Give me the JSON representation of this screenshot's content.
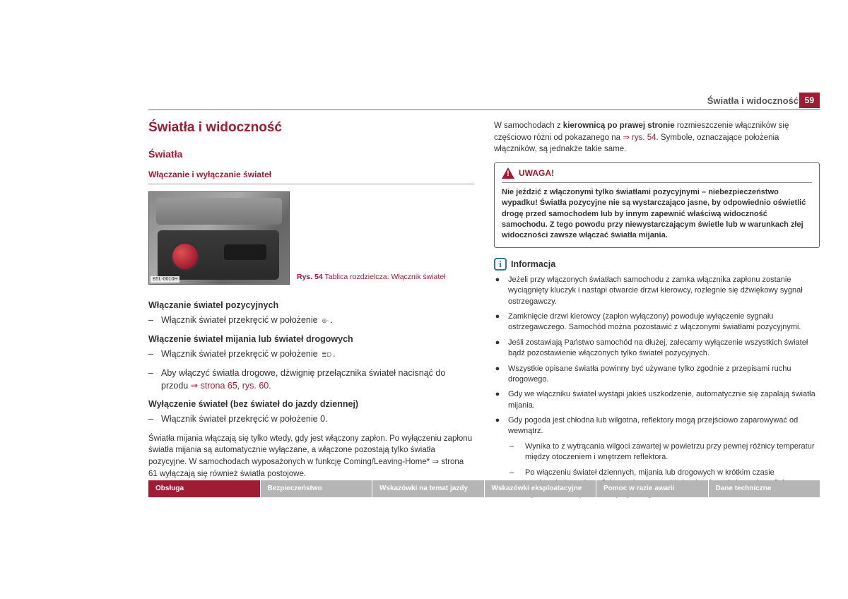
{
  "header": {
    "title": "Światła i widoczność",
    "page_number": "59"
  },
  "left": {
    "main_title": "Światła i widoczność",
    "section_title": "Światła",
    "sub_title": "Włączanie i wyłączanie świateł",
    "figure": {
      "tag": "B5L-0010H",
      "label": "Rys. 54",
      "caption": "Tablica rozdzielcza: Włącznik świateł"
    },
    "block1": {
      "head": "Włączanie świateł pozycyjnych",
      "item": "Włącznik świateł przekręcić w położenie ",
      "sym": "⊕⋅"
    },
    "block2": {
      "head": "Włączenie świateł mijania lub świateł drogowych",
      "item1": "Włącznik świateł przekręcić w położenie ",
      "sym1": "≣D",
      "item2_a": "Aby włączyć światła drogowe, dźwignię przełącznika świateł nacisnąć do przodu ",
      "item2_link": "⇒ strona 65, rys. 60",
      "item2_b": "."
    },
    "block3": {
      "head": "Wyłączenie świateł (bez świateł do jazdy dziennej)",
      "item": "Włącznik świateł przekręcić w położenie 0."
    },
    "para": "Światła mijania włączają się tylko wtedy, gdy jest włączony zapłon. Po wyłączeniu zapłonu światła mijania są automatycznie wyłączane, a włączone pozostają tylko światła pozycyjne. W samochodach wyposażonych w funkcję Coming/Leaving-Home* ⇒ strona 61 wyłączają się również światła postojowe."
  },
  "right": {
    "intro_a": "W samochodach z ",
    "intro_bold": "kierownicą po prawej stronie",
    "intro_b": " rozmieszczenie włączników się częściowo różni od pokazanego na ",
    "intro_link": "⇒ rys. 54",
    "intro_c": ". Symbole, oznaczające położenia włączników, są jednakże takie same.",
    "warning": {
      "label": "UWAGA!",
      "body": "Nie jeździć z włączonymi tylko światłami pozycyjnymi – niebezpieczeństwo wypadku! Światła pozycyjne nie są wystarczająco jasne, by odpowiednio oświetlić drogę przed samochodem lub by innym zapewnić właściwą widoczność samochodu. Z tego powodu przy niewystarczającym świetle lub w warunkach złej widoczności zawsze włączać światła mijania."
    },
    "info_label": "Informacja",
    "bullets": [
      "Jeżeli przy włączonych światłach samochodu z zamka włącznika zapłonu zostanie wyciągnięty kluczyk i nastąpi otwarcie drzwi kierowcy, rozlegnie się dźwiękowy sygnał ostrzegawczy.",
      "Zamknięcie drzwi kierowcy (zapłon wyłączony) powoduje wyłączenie sygnału ostrzegawczego. Samochód można pozostawić z włączonymi światłami pozycyjnymi.",
      "Jeśli zostawiają Państwo samochód na dłużej, zalecamy wyłączenie wszystkich świateł bądź pozostawienie włączonych tylko świateł pozycyjnych.",
      "Wszystkie opisane światła powinny być używane tylko zgodnie z przepisami ruchu drogowego.",
      "Gdy we włączniku świateł wystąpi jakieś uszkodzenie, automatycznie się zapalają światła mijania.",
      "Gdy pogoda jest chłodna lub wilgotna, reflektory mogą przejściowo zaparowywać od wewnątrz."
    ],
    "sub_bullets": [
      "Wynika to z wytrącania wilgoci zawartej w powietrzu przy pewnej różnicy temperatur między otoczeniem i wnętrzem reflektora.",
      "Po włączeniu świateł dziennych, mijania lub drogowych w krótkim czasie powierzchnia szyby reflektora się osusza. Może się zdarzyć, że szyba reflektora będzie nadal zaparowana przy brzegach."
    ]
  },
  "nav": {
    "items": [
      "Obsługa",
      "Bezpieczeństwo",
      "Wskazówki na temat jazdy",
      "Wskazówki eksploatacyjne",
      "Pomoc w razie awarii",
      "Dane techniczne"
    ]
  },
  "colors": {
    "accent": "#a01c32",
    "nav_inactive": "#b5b5b5"
  }
}
